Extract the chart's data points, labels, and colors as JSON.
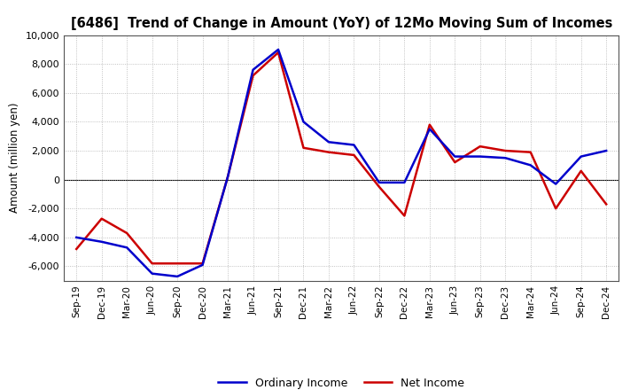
{
  "title": "[6486]  Trend of Change in Amount (YoY) of 12Mo Moving Sum of Incomes",
  "ylabel": "Amount (million yen)",
  "x_labels": [
    "Sep-19",
    "Dec-19",
    "Mar-20",
    "Jun-20",
    "Sep-20",
    "Dec-20",
    "Mar-21",
    "Jun-21",
    "Sep-21",
    "Dec-21",
    "Mar-22",
    "Jun-22",
    "Sep-22",
    "Dec-22",
    "Mar-23",
    "Jun-23",
    "Sep-23",
    "Dec-23",
    "Mar-24",
    "Jun-24",
    "Sep-24",
    "Dec-24"
  ],
  "ordinary_income": [
    -4000,
    -4300,
    -4700,
    -6500,
    -6700,
    -5900,
    200,
    7600,
    9000,
    4000,
    2600,
    2400,
    -200,
    -200,
    3500,
    1600,
    1600,
    1500,
    1000,
    -300,
    1600,
    2000
  ],
  "net_income": [
    -4800,
    -2700,
    -3700,
    -5800,
    -5800,
    -5800,
    200,
    7200,
    8800,
    2200,
    1900,
    1700,
    -500,
    -2500,
    3800,
    1200,
    2300,
    2000,
    1900,
    -2000,
    600,
    -1700
  ],
  "ordinary_color": "#0000cc",
  "net_color": "#cc0000",
  "background_color": "#ffffff",
  "grid_color": "#b0b0b0",
  "ylim": [
    -7000,
    10000
  ],
  "yticks": [
    -6000,
    -4000,
    -2000,
    0,
    2000,
    4000,
    6000,
    8000,
    10000
  ]
}
